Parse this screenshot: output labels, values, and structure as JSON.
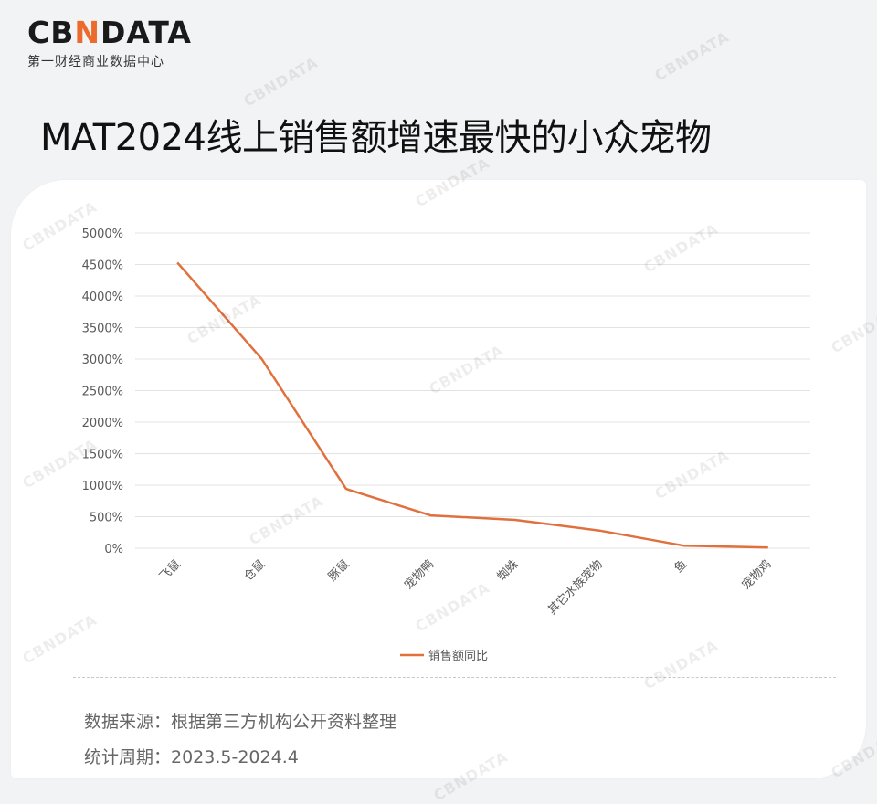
{
  "brand": {
    "logo_prefix": "CB",
    "logo_mark": "N",
    "logo_suffix": "DATA",
    "subtitle": "第一财经商业数据中心",
    "watermark": "CBNDATA"
  },
  "page": {
    "title": "MAT2024线上销售额增速最快的小众宠物"
  },
  "footer": {
    "source": "数据来源：根据第三方机构公开资料整理",
    "period": "统计周期：2023.5-2024.4"
  },
  "colors": {
    "line": "#e0703e",
    "accent": "#ec6a2c",
    "grid": "#e3e3e3"
  },
  "chart_data": {
    "type": "line",
    "title": "MAT2024线上销售额增速最快的小众宠物",
    "xlabel": "",
    "ylabel": "",
    "categories": [
      "飞鼠",
      "仓鼠",
      "豚鼠",
      "宠物鸭",
      "蜘蛛",
      "其它水族宠物",
      "鱼",
      "宠物鸡"
    ],
    "series": [
      {
        "name": "销售额同比",
        "values": [
          4530,
          3000,
          940,
          520,
          450,
          280,
          40,
          10
        ]
      }
    ],
    "ylim": [
      0,
      5000
    ],
    "yticks": [
      0,
      500,
      1000,
      1500,
      2000,
      2500,
      3000,
      3500,
      4000,
      4500,
      5000
    ],
    "ytick_labels": [
      "0%",
      "500%",
      "1000%",
      "1500%",
      "2000%",
      "2500%",
      "3000%",
      "3500%",
      "4000%",
      "4500%",
      "5000%"
    ],
    "unit": "%",
    "grid": true,
    "legend_position": "bottom"
  }
}
